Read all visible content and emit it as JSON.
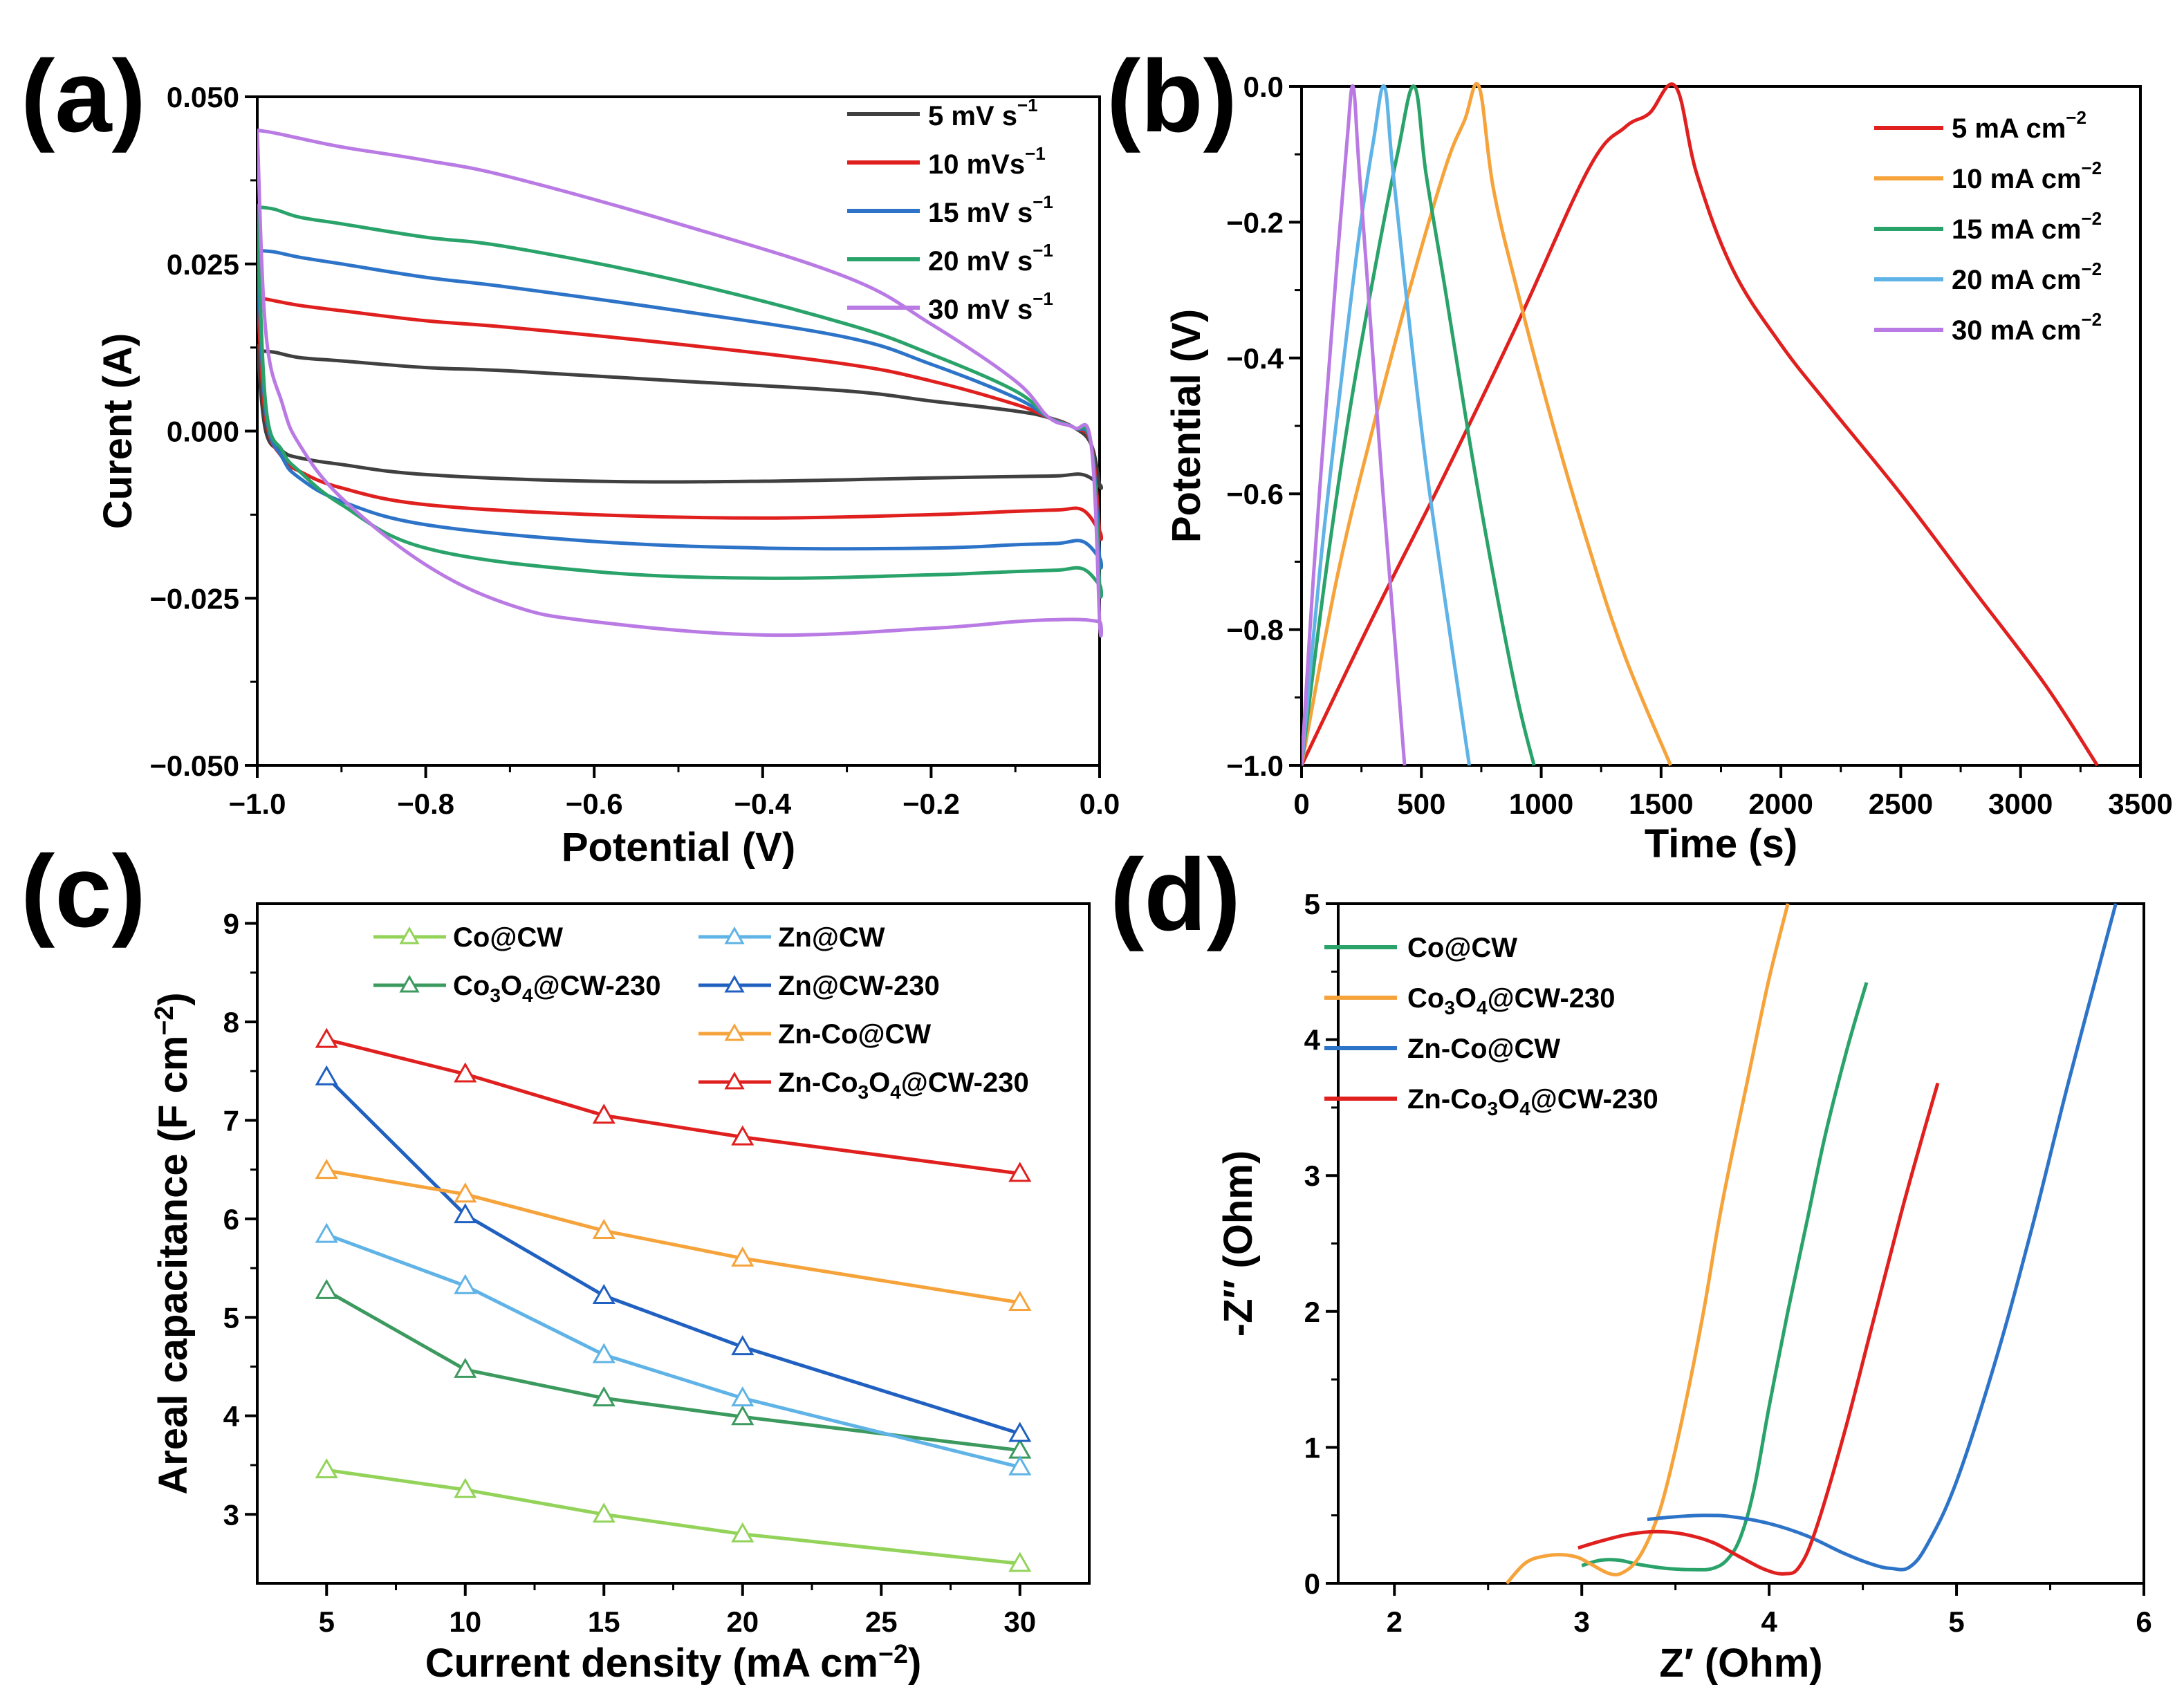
{
  "colors": {
    "black": "#404040",
    "red": "#e0201f",
    "orange": "#f5a33a",
    "green": "#2aa36b",
    "blue": "#2d74c8",
    "purple": "#b97ae4",
    "lightgreen": "#93d35a",
    "darkgreen": "#3c9a5f",
    "lightblue": "#5fb3e6",
    "darkblue": "#2060c0"
  },
  "chart_data": [
    {
      "id": "a",
      "type": "line",
      "panel_label": "(a)",
      "xlabel": "Potential (V)",
      "ylabel": "Curent (A)",
      "xlim": [
        -1.0,
        0.0
      ],
      "ylim": [
        -0.05,
        0.05
      ],
      "xticks": [
        -1.0,
        -0.8,
        -0.6,
        -0.4,
        -0.2,
        0.0
      ],
      "xtick_labels": [
        "−1.0",
        "−0.8",
        "−0.6",
        "−0.4",
        "−0.2",
        "0.0"
      ],
      "yticks": [
        -0.05,
        -0.025,
        0.0,
        0.025,
        0.05
      ],
      "ytick_labels": [
        "−0.050",
        "−0.025",
        "0.000",
        "0.025",
        "0.050"
      ],
      "legend_position": "top-right",
      "series": [
        {
          "name": "5 mV s",
          "sup": "−1",
          "color": "#404040",
          "x": [
            -1.0,
            -0.99,
            -0.97,
            -0.95,
            -0.9,
            -0.8,
            -0.6,
            -0.4,
            -0.2,
            -0.1,
            -0.05,
            -0.02,
            0.0,
            0.0,
            -0.01,
            -0.03,
            -0.06,
            -0.1,
            -0.2,
            -0.3,
            -0.5,
            -0.7,
            -0.8,
            -0.9,
            -0.95,
            -0.98,
            -1.0
          ],
          "y": [
            0.013,
            0.0,
            -0.003,
            -0.004,
            -0.005,
            -0.0065,
            -0.0075,
            -0.0075,
            -0.007,
            -0.0068,
            -0.0067,
            -0.0065,
            -0.008,
            -0.008,
            -0.002,
            0.0005,
            0.002,
            0.003,
            0.0045,
            0.006,
            0.0075,
            0.009,
            0.0095,
            0.0105,
            0.011,
            0.0118,
            0.012
          ]
        },
        {
          "name": "10 mVs",
          "sup": "−1",
          "color": "#e0201f",
          "x": [
            -1.0,
            -0.99,
            -0.97,
            -0.95,
            -0.9,
            -0.8,
            -0.6,
            -0.4,
            -0.2,
            -0.1,
            -0.05,
            -0.02,
            0.0,
            0.0,
            -0.01,
            -0.03,
            -0.06,
            -0.1,
            -0.2,
            -0.3,
            -0.5,
            -0.7,
            -0.8,
            -0.9,
            -0.95,
            -0.98,
            -1.0
          ],
          "y": [
            0.021,
            0.002,
            -0.004,
            -0.006,
            -0.0085,
            -0.011,
            -0.0125,
            -0.013,
            -0.0125,
            -0.012,
            -0.0118,
            -0.0118,
            -0.015,
            -0.015,
            -0.002,
            0.0005,
            0.002,
            0.004,
            0.0075,
            0.01,
            0.013,
            0.0155,
            0.0165,
            0.018,
            0.0188,
            0.0195,
            0.02
          ]
        },
        {
          "name": "15 mV s",
          "sup": "−1",
          "color": "#2d74c8",
          "x": [
            -1.0,
            -0.99,
            -0.97,
            -0.95,
            -0.9,
            -0.8,
            -0.6,
            -0.4,
            -0.2,
            -0.1,
            -0.05,
            -0.02,
            0.0,
            0.0,
            -0.01,
            -0.03,
            -0.06,
            -0.1,
            -0.2,
            -0.3,
            -0.5,
            -0.7,
            -0.8,
            -0.9,
            -0.95,
            -0.98,
            -1.0
          ],
          "y": [
            0.028,
            0.003,
            -0.004,
            -0.007,
            -0.0105,
            -0.014,
            -0.0165,
            -0.0175,
            -0.0175,
            -0.017,
            -0.0168,
            -0.0165,
            -0.019,
            -0.019,
            -0.002,
            0.0005,
            0.002,
            0.005,
            0.01,
            0.014,
            0.018,
            0.0215,
            0.023,
            0.025,
            0.026,
            0.0268,
            0.027
          ]
        },
        {
          "name": "20 mV s",
          "sup": "−1",
          "color": "#2aa36b",
          "x": [
            -1.0,
            -0.99,
            -0.97,
            -0.95,
            -0.9,
            -0.8,
            -0.6,
            -0.4,
            -0.2,
            -0.1,
            -0.05,
            -0.02,
            0.0,
            0.0,
            -0.01,
            -0.03,
            -0.06,
            -0.1,
            -0.2,
            -0.3,
            -0.5,
            -0.7,
            -0.8,
            -0.9,
            -0.95,
            -0.98,
            -1.0
          ],
          "y": [
            0.034,
            0.004,
            -0.003,
            -0.006,
            -0.011,
            -0.0175,
            -0.021,
            -0.022,
            -0.0215,
            -0.021,
            -0.0208,
            -0.0206,
            -0.023,
            -0.023,
            -0.002,
            0.0005,
            0.002,
            0.006,
            0.0115,
            0.016,
            0.0225,
            0.0275,
            0.029,
            0.031,
            0.032,
            0.0332,
            0.0335
          ]
        },
        {
          "name": "30 mV s",
          "sup": "−1",
          "color": "#b97ae4",
          "x": [
            -1.0,
            -0.99,
            -0.97,
            -0.95,
            -0.9,
            -0.8,
            -0.7,
            -0.6,
            -0.4,
            -0.2,
            -0.1,
            -0.05,
            -0.02,
            0.0,
            0.0,
            -0.01,
            -0.03,
            -0.06,
            -0.1,
            -0.2,
            -0.3,
            -0.5,
            -0.7,
            -0.8,
            -0.9,
            -0.95,
            -0.98,
            -1.0
          ],
          "y": [
            0.045,
            0.015,
            0.004,
            -0.002,
            -0.01,
            -0.02,
            -0.026,
            -0.0285,
            -0.0305,
            -0.0295,
            -0.0285,
            -0.0282,
            -0.0282,
            -0.0285,
            -0.0285,
            -0.002,
            0.0005,
            0.002,
            0.0075,
            0.016,
            0.023,
            0.031,
            0.038,
            0.0405,
            0.0425,
            0.0438,
            0.0446,
            0.045
          ]
        }
      ]
    },
    {
      "id": "b",
      "type": "line",
      "panel_label": "(b)",
      "xlabel": "Time (s)",
      "ylabel": "Potential (V)",
      "xlim": [
        0,
        3500
      ],
      "ylim": [
        -1.0,
        0.0
      ],
      "xticks": [
        0,
        500,
        1000,
        1500,
        2000,
        2500,
        3000,
        3500
      ],
      "xtick_labels": [
        "0",
        "500",
        "1000",
        "1500",
        "2000",
        "2500",
        "3000",
        "3500"
      ],
      "yticks": [
        -1.0,
        -0.8,
        -0.6,
        -0.4,
        -0.2,
        0.0
      ],
      "ytick_labels": [
        "−1.0",
        "−0.8",
        "−0.6",
        "−0.4",
        "−0.2",
        "0.0"
      ],
      "legend_position": "top-right",
      "series": [
        {
          "name": "5 mA cm",
          "sup": "−2",
          "color": "#e0201f",
          "x": [
            0,
            300,
            600,
            900,
            1200,
            1350,
            1450,
            1560,
            1650,
            1800,
            2000,
            2200,
            2500,
            2800,
            3100,
            3320
          ],
          "y": [
            -1.0,
            -0.78,
            -0.57,
            -0.35,
            -0.12,
            -0.06,
            -0.04,
            0.0,
            -0.13,
            -0.27,
            -0.38,
            -0.47,
            -0.6,
            -0.74,
            -0.88,
            -1.0
          ]
        },
        {
          "name": "10 mA cm",
          "sup": "−2",
          "color": "#f5a33a",
          "x": [
            0,
            150,
            300,
            450,
            600,
            680,
            740,
            800,
            900,
            1050,
            1200,
            1350,
            1540
          ],
          "y": [
            -1.0,
            -0.72,
            -0.5,
            -0.3,
            -0.12,
            -0.05,
            0.0,
            -0.15,
            -0.3,
            -0.5,
            -0.68,
            -0.84,
            -1.0
          ]
        },
        {
          "name": "15 mA cm",
          "sup": "−2",
          "color": "#2aa36b",
          "x": [
            0,
            100,
            200,
            300,
            400,
            470,
            520,
            600,
            700,
            800,
            900,
            970
          ],
          "y": [
            -1.0,
            -0.72,
            -0.48,
            -0.28,
            -0.1,
            0.0,
            -0.13,
            -0.3,
            -0.52,
            -0.72,
            -0.9,
            -1.0
          ]
        },
        {
          "name": "20 mA cm",
          "sup": "−2",
          "color": "#5fb3e6",
          "x": [
            0,
            80,
            160,
            240,
            300,
            345,
            380,
            450,
            520,
            600,
            700
          ],
          "y": [
            -1.0,
            -0.7,
            -0.45,
            -0.22,
            -0.08,
            0.0,
            -0.12,
            -0.35,
            -0.56,
            -0.76,
            -1.0
          ]
        },
        {
          "name": "30 mA cm",
          "sup": "−2",
          "color": "#b97ae4",
          "x": [
            0,
            50,
            100,
            150,
            190,
            215,
            240,
            290,
            340,
            390,
            430
          ],
          "y": [
            -1.0,
            -0.72,
            -0.48,
            -0.25,
            -0.08,
            0.0,
            -0.12,
            -0.36,
            -0.6,
            -0.82,
            -1.0
          ]
        }
      ]
    },
    {
      "id": "c",
      "type": "line",
      "panel_label": "(c)",
      "xlabel": "Current density (mA cm",
      "xlabel_sup": "−2",
      "xlabel_end": ")",
      "ylabel": "Areal capacitance (F cm",
      "ylabel_sup": "−2",
      "ylabel_end": ")",
      "xlim": [
        2.5,
        32.5
      ],
      "ylim": [
        2.3,
        9.2
      ],
      "xticks": [
        5,
        10,
        15,
        20,
        25,
        30
      ],
      "xtick_labels": [
        "5",
        "10",
        "15",
        "20",
        "25",
        "30"
      ],
      "yticks": [
        3,
        4,
        5,
        6,
        7,
        8,
        9
      ],
      "ytick_labels": [
        "3",
        "4",
        "5",
        "6",
        "7",
        "8",
        "9"
      ],
      "legend_position": "top",
      "marker": "open-triangle",
      "x": [
        5,
        10,
        15,
        20,
        30
      ],
      "series": [
        {
          "name": "Co@CW",
          "color": "#93d35a",
          "values": [
            3.45,
            3.25,
            3.0,
            2.8,
            2.5
          ]
        },
        {
          "name": "Co3O4@CW-230",
          "formula": [
            [
              "Co",
              false
            ],
            [
              "3",
              true
            ],
            [
              "O",
              false
            ],
            [
              "4",
              true
            ],
            [
              "@CW-230",
              false
            ]
          ],
          "color": "#3c9a5f",
          "values": [
            5.27,
            4.47,
            4.18,
            3.99,
            3.65
          ]
        },
        {
          "name": "Zn@CW",
          "color": "#5fb3e6",
          "values": [
            5.84,
            5.32,
            4.62,
            4.18,
            3.48
          ]
        },
        {
          "name": "Zn@CW-230",
          "color": "#2060c0",
          "values": [
            7.44,
            6.04,
            5.22,
            4.7,
            3.82
          ]
        },
        {
          "name": "Zn-Co@CW",
          "color": "#f5a33a",
          "values": [
            6.49,
            6.25,
            5.88,
            5.6,
            5.15
          ]
        },
        {
          "name": "Zn-Co3O4@CW-230",
          "formula": [
            [
              "Zn-Co",
              false
            ],
            [
              "3",
              true
            ],
            [
              "O",
              false
            ],
            [
              "4",
              true
            ],
            [
              "@CW-230",
              false
            ]
          ],
          "color": "#e0201f",
          "values": [
            7.82,
            7.47,
            7.05,
            6.83,
            6.46
          ]
        }
      ]
    },
    {
      "id": "d",
      "type": "line",
      "panel_label": "(d)",
      "xlabel": "Z′ (Ohm)",
      "ylabel": "-Z″ (Ohm)",
      "xlim": [
        1.7,
        6.0
      ],
      "ylim": [
        0,
        5
      ],
      "xticks": [
        2,
        3,
        4,
        5,
        6
      ],
      "xtick_labels": [
        "2",
        "3",
        "4",
        "5",
        "6"
      ],
      "yticks": [
        0,
        1,
        2,
        3,
        4,
        5
      ],
      "ytick_labels": [
        "0",
        "1",
        "2",
        "3",
        "4",
        "5"
      ],
      "legend_position": "top-left",
      "series": [
        {
          "name": "Co@CW",
          "color": "#2aa36b",
          "x": [
            3.0,
            3.1,
            3.2,
            3.3,
            3.45,
            3.6,
            3.7,
            3.78,
            3.85,
            3.92,
            4.0,
            4.1,
            4.2,
            4.3,
            4.42,
            4.52
          ],
          "y": [
            0.13,
            0.17,
            0.17,
            0.14,
            0.11,
            0.1,
            0.11,
            0.18,
            0.35,
            0.7,
            1.3,
            2.0,
            2.65,
            3.3,
            3.95,
            4.42
          ]
        },
        {
          "name": "Co3O4@CW-230",
          "formula": [
            [
              "Co",
              false
            ],
            [
              "3",
              true
            ],
            [
              "O",
              false
            ],
            [
              "4",
              true
            ],
            [
              "@CW-230",
              false
            ]
          ],
          "color": "#f5a33a",
          "x": [
            2.6,
            2.7,
            2.8,
            2.9,
            2.98,
            3.05,
            3.15,
            3.22,
            3.3,
            3.38,
            3.45,
            3.55,
            3.65,
            3.75,
            3.9,
            4.0,
            4.1
          ],
          "y": [
            0.0,
            0.15,
            0.2,
            0.21,
            0.19,
            0.14,
            0.07,
            0.08,
            0.18,
            0.4,
            0.7,
            1.3,
            2.0,
            2.8,
            3.8,
            4.45,
            5.0
          ]
        },
        {
          "name": "Zn-Co@CW",
          "color": "#2d74c8",
          "x": [
            3.35,
            3.5,
            3.65,
            3.8,
            4.0,
            4.2,
            4.4,
            4.55,
            4.65,
            4.75,
            4.85,
            5.0,
            5.2,
            5.4,
            5.6,
            5.85
          ],
          "y": [
            0.47,
            0.49,
            0.5,
            0.49,
            0.44,
            0.35,
            0.22,
            0.14,
            0.11,
            0.12,
            0.3,
            0.75,
            1.6,
            2.6,
            3.7,
            5.0
          ]
        },
        {
          "name": "Zn-Co3O4@CW-230",
          "formula": [
            [
              "Zn-Co",
              false
            ],
            [
              "3",
              true
            ],
            [
              "O",
              false
            ],
            [
              "4",
              true
            ],
            [
              "@CW-230",
              false
            ]
          ],
          "color": "#e0201f",
          "x": [
            2.98,
            3.1,
            3.25,
            3.4,
            3.55,
            3.7,
            3.85,
            3.98,
            4.08,
            4.16,
            4.25,
            4.4,
            4.55,
            4.7,
            4.8,
            4.9
          ],
          "y": [
            0.26,
            0.31,
            0.36,
            0.38,
            0.36,
            0.3,
            0.19,
            0.1,
            0.07,
            0.12,
            0.4,
            1.1,
            1.9,
            2.7,
            3.2,
            3.68
          ]
        }
      ]
    }
  ]
}
